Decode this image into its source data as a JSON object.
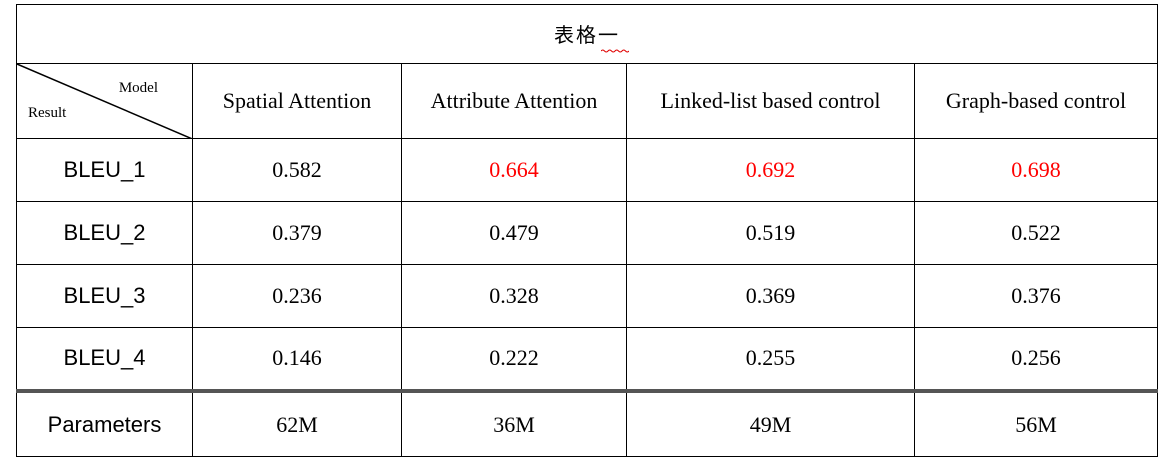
{
  "table": {
    "title": "表格一",
    "corner": {
      "top_right": "Model",
      "bottom_left": "Result"
    },
    "columns": [
      "Spatial Attention",
      "Attribute Attention",
      "Linked-list based control",
      "Graph-based control"
    ],
    "rows": [
      {
        "metric": "BLEU_1",
        "values": [
          "0.582",
          "0.664",
          "0.692",
          "0.698"
        ]
      },
      {
        "metric": "BLEU_2",
        "values": [
          "0.379",
          "0.479",
          "0.519",
          "0.522"
        ]
      },
      {
        "metric": "BLEU_3",
        "values": [
          "0.236",
          "0.328",
          "0.369",
          "0.376"
        ]
      },
      {
        "metric": "BLEU_4",
        "values": [
          "0.146",
          "0.222",
          "0.255",
          "0.256"
        ]
      }
    ],
    "parameters": {
      "label": "Parameters",
      "values": [
        "62M",
        "36M",
        "49M",
        "56M"
      ]
    },
    "highlight_color": "#ff0000",
    "separator_color": "#555555"
  }
}
